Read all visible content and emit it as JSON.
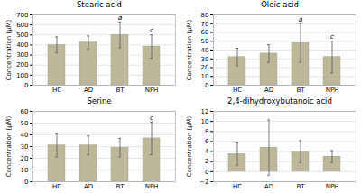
{
  "chart_data": [
    {
      "type": "bar",
      "title": "Stearic acid",
      "ylabel": "Concentration (μM)",
      "categories": [
        "HC",
        "AD",
        "BT",
        "NPH"
      ],
      "values": [
        400,
        425,
        500,
        385
      ],
      "errors": [
        80,
        65,
        130,
        115
      ],
      "ylim": [
        0,
        700
      ],
      "yticks": [
        0,
        100,
        200,
        300,
        400,
        500,
        600,
        700
      ],
      "grid": true,
      "color": "#bdb89a",
      "annotations": [
        {
          "category": "BT",
          "text": "a"
        },
        {
          "category": "NPH",
          "text": "c"
        }
      ]
    },
    {
      "type": "bar",
      "title": "Oleic acid",
      "ylabel": "Concentration (μM)",
      "categories": [
        "HC",
        "AD",
        "BT",
        "NPH"
      ],
      "values": [
        32,
        36,
        48,
        32
      ],
      "errors": [
        10,
        10,
        22,
        18
      ],
      "ylim": [
        0,
        80
      ],
      "yticks": [
        0,
        10,
        20,
        30,
        40,
        50,
        60,
        70,
        80
      ],
      "grid": true,
      "color": "#bdb89a",
      "annotations": [
        {
          "category": "BT",
          "text": "a"
        },
        {
          "category": "NPH",
          "text": "c"
        }
      ]
    },
    {
      "type": "bar",
      "title": "Serine",
      "ylabel": "Concentration (μM)",
      "categories": [
        "HC",
        "AD",
        "BT",
        "NPH"
      ],
      "values": [
        31,
        31,
        29,
        37
      ],
      "errors": [
        10,
        8,
        8,
        14
      ],
      "ylim": [
        0,
        60
      ],
      "yticks": [
        0,
        10,
        20,
        30,
        40,
        50,
        60
      ],
      "grid": true,
      "color": "#bdb89a",
      "annotations": [
        {
          "category": "NPH",
          "text": "c"
        }
      ]
    },
    {
      "type": "bar",
      "title": "2,4-dihydroxybutanoic acid",
      "ylabel": "Concentration (μM)",
      "categories": [
        "HC",
        "AD",
        "BT",
        "NPH"
      ],
      "values": [
        3.5,
        4.8,
        4.0,
        3.0
      ],
      "errors": [
        2.2,
        5.5,
        2.2,
        1.2
      ],
      "ylim": [
        -2,
        12
      ],
      "yticks": [
        -2,
        0,
        2,
        4,
        6,
        8,
        10,
        12
      ],
      "grid": true,
      "color": "#bdb89a"
    }
  ]
}
